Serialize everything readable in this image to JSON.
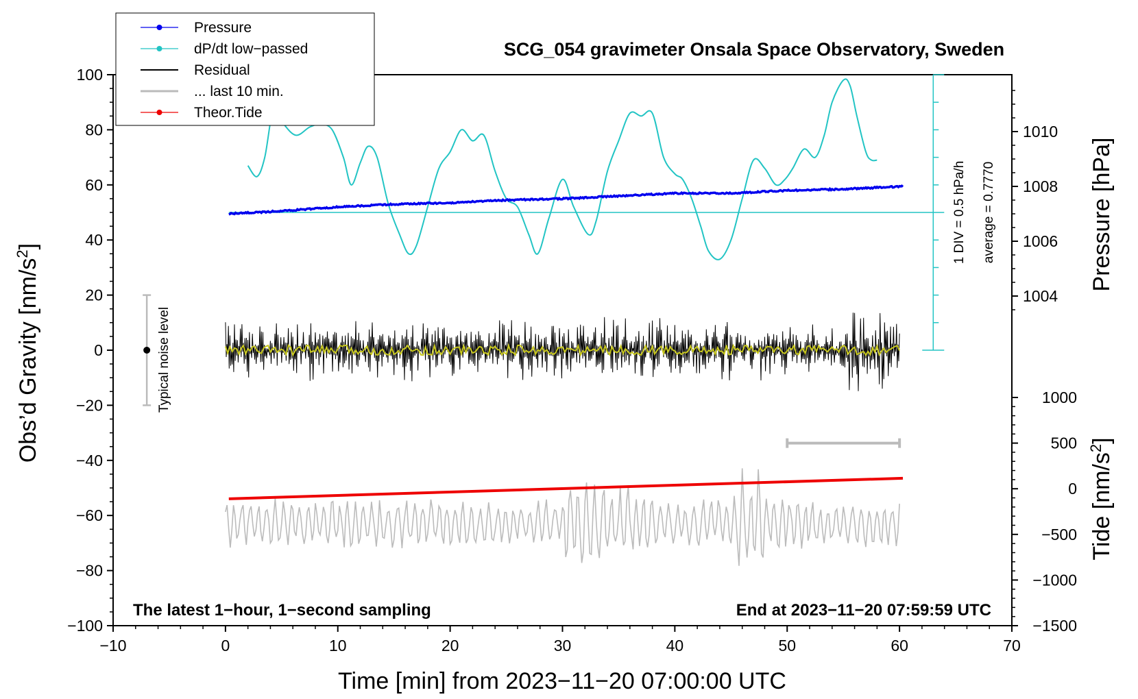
{
  "chart_data": {
    "type": "line",
    "title": "SCG_054 gravimeter Onsala Space Observatory, Sweden",
    "xlabel": "Time [min] from 2023−11−20 07:00:00 UTC",
    "ylabel": "Obs’d Gravity [nm/s",
    "ylabel_sup": "2",
    "ylabel_end": "]",
    "y2label": "Pressure [hPa]",
    "y3label": "Tide [nm/s",
    "y3label_sup": "2",
    "y3label_end": "]",
    "xlim": [
      -10,
      70
    ],
    "ylim": [
      -100,
      100
    ],
    "pressure_lim": [
      1002,
      1012
    ],
    "tide_lim": [
      -1500,
      1500
    ],
    "x_ticks": [
      "−10",
      "0",
      "10",
      "20",
      "30",
      "40",
      "50",
      "60",
      "70"
    ],
    "y_ticks": [
      "100",
      "80",
      "60",
      "40",
      "20",
      "0",
      "−20",
      "−40",
      "−60",
      "−80",
      "−100"
    ],
    "pressure_ticks": [
      "1010",
      "1008",
      "1006",
      "1004"
    ],
    "tide_ticks": [
      "1000",
      "500",
      "0",
      "−500",
      "−1000",
      "−1500"
    ],
    "caption_left": "The latest 1−hour, 1−second sampling",
    "caption_right": "End at 2023−11−20 07:59:59 UTC",
    "noise_label": "Typical noise level",
    "dpdt_scale_label": "1 DIV = 0.5 hPa/h",
    "dpdt_average_label": "average = 0.7770",
    "legend": [
      {
        "label": "Pressure",
        "color": "#0000ee",
        "marker": true
      },
      {
        "label": "dP/dt low−passed",
        "color": "#22c4c4",
        "marker": true
      },
      {
        "label": "Residual",
        "color": "#000000",
        "marker": false
      },
      {
        "label": "... last 10 min.",
        "color": "#bbbbbb",
        "marker": false
      },
      {
        "label": "Theor.Tide",
        "color": "#ee0000",
        "marker": true
      }
    ],
    "series": [
      {
        "name": "Pressure",
        "axis": "pressure_hPa",
        "color": "#0000ee",
        "x": [
          0.3,
          5,
          10,
          15,
          20,
          25,
          30,
          35,
          40,
          45,
          50,
          55,
          60.3
        ],
        "values": [
          1007.0,
          1007.1,
          1007.25,
          1007.35,
          1007.4,
          1007.5,
          1007.55,
          1007.65,
          1007.75,
          1007.75,
          1007.85,
          1007.9,
          1008.0
        ]
      },
      {
        "name": "dP/dt low-passed",
        "axis": "gravity_div",
        "color": "#22c4c4",
        "x": [
          2,
          2.8,
          3.5,
          4.3,
          5.2,
          6.3,
          7.5,
          8.5,
          9.5,
          10.5,
          11.2,
          12,
          12.7,
          13.5,
          14.5,
          15.5,
          16.3,
          17,
          18,
          19,
          20,
          21,
          22,
          23,
          24,
          25,
          26,
          27,
          27.8,
          28.8,
          30,
          31,
          32.3,
          33,
          34,
          35,
          36,
          37,
          38,
          39,
          40,
          40.7,
          41.5,
          42.3,
          43,
          44,
          45,
          46,
          47,
          48,
          49,
          49.8,
          50.5,
          51.5,
          52.5,
          53.3,
          54,
          55,
          55.6,
          56.2,
          57,
          57.5,
          58
        ],
        "values": [
          67,
          63,
          70,
          88,
          82,
          78,
          81,
          82,
          80,
          70,
          60,
          68,
          74,
          70,
          53,
          42,
          35,
          38,
          52,
          66,
          72,
          80,
          76,
          78,
          65,
          55,
          52,
          42,
          35,
          48,
          62,
          52,
          42,
          47,
          65,
          76,
          86,
          85,
          86,
          70,
          64,
          62,
          55,
          45,
          36,
          33,
          40,
          55,
          69,
          66,
          60,
          62,
          66,
          73,
          70,
          78,
          90,
          98,
          96,
          85,
          72,
          69,
          69
        ]
      },
      {
        "name": "Theor.Tide",
        "axis": "tide_nm_s2",
        "color": "#ee0000",
        "x": [
          0.3,
          60.3
        ],
        "values": [
          -110,
          115
        ]
      },
      {
        "name": "Residual",
        "axis": "gravity",
        "color": "#000000",
        "x_range": [
          0,
          60
        ],
        "center": 0,
        "amplitude": 12,
        "points": 900
      },
      {
        "name": "Residual (smoothed)",
        "axis": "gravity",
        "color": "#c8c81e",
        "x_range": [
          0,
          60
        ],
        "center": 0,
        "amplitude": 1.8,
        "points": 300
      },
      {
        "name": "... last 10 min.",
        "axis": "gravity",
        "color": "#bbbbbb",
        "x_range": [
          0,
          60
        ],
        "center": -63,
        "amplitude": 9,
        "points": 420
      }
    ],
    "last10_bar": {
      "x": [
        50,
        60
      ],
      "tide": 500
    },
    "noise_bar": {
      "x": -7,
      "y": [
        -20,
        20
      ],
      "center": 0
    },
    "dpdt_axis": {
      "x": 63,
      "y": [
        0,
        100
      ],
      "baseline": 50
    }
  }
}
